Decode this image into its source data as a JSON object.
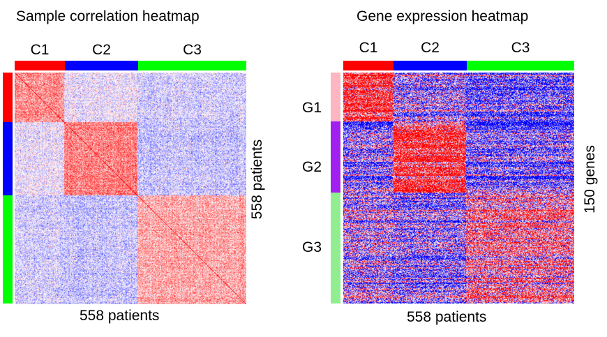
{
  "colors": {
    "C1": "#ff0000",
    "C2": "#0000ff",
    "C3": "#00ff00",
    "G1": "#ffb6c1",
    "G2": "#a020f0",
    "G3": "#90ee90",
    "low": "#0000ff",
    "mid": "#ffffff",
    "high": "#ff0000"
  },
  "chart_data": [
    {
      "type": "heatmap",
      "title": "Sample correlation heatmap",
      "xlabel": "558 patients",
      "ylabel": "558 patients",
      "clusters": [
        {
          "name": "C1",
          "fraction": 0.215
        },
        {
          "name": "C2",
          "fraction": 0.316
        },
        {
          "name": "C3",
          "fraction": 0.469
        }
      ],
      "block_means": [
        [
          0.45,
          -0.05,
          -0.15
        ],
        [
          -0.05,
          0.5,
          -0.2
        ],
        [
          -0.15,
          -0.2,
          0.35
        ]
      ],
      "diagonal": 1
    },
    {
      "type": "heatmap",
      "title": "Gene expression heatmap",
      "xlabel": "558 patients",
      "ylabel": "150 genes",
      "clusters": [
        {
          "name": "C1",
          "fraction": 0.215
        },
        {
          "name": "C2",
          "fraction": 0.316
        },
        {
          "name": "C3",
          "fraction": 0.469
        }
      ],
      "gene_groups": [
        {
          "name": "G1",
          "fraction": 0.21
        },
        {
          "name": "G2",
          "fraction": 0.31
        },
        {
          "name": "G3",
          "fraction": 0.48
        }
      ],
      "block_means": [
        [
          0.9,
          -0.3,
          -0.6
        ],
        [
          -0.4,
          0.9,
          -0.5
        ],
        [
          -0.15,
          -0.35,
          0.35
        ]
      ]
    }
  ]
}
